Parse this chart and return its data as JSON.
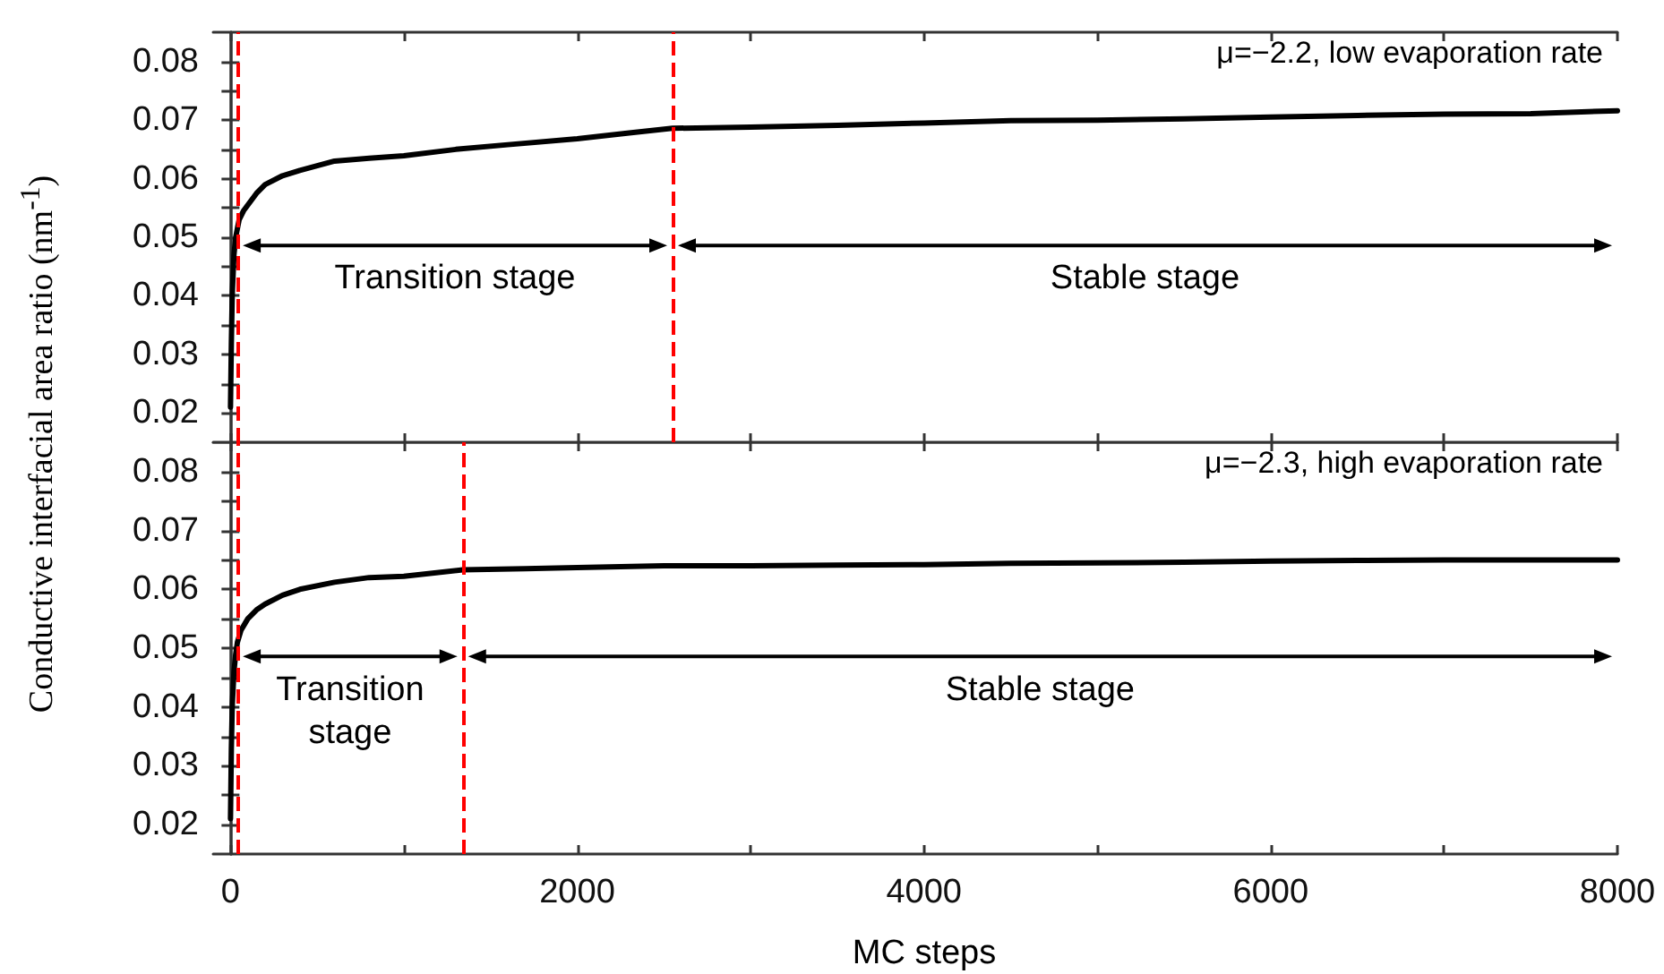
{
  "chart_data": [
    {
      "type": "line",
      "ylabel": "Conductive interfacial area ratio (nm$^{-1}$)",
      "annotations": [
        "μ=−2.2, low evaporation rate",
        "Transition stage",
        "Stable stage"
      ],
      "series": [
        {
          "color": "#000000",
          "x": [
            0,
            5,
            10,
            20,
            30,
            50,
            75,
            100,
            150,
            200,
            300,
            400,
            600,
            800,
            1000,
            1300,
            1600,
            2000,
            2300,
            2550,
            3000,
            3500,
            4000,
            4500,
            5000,
            5500,
            6000,
            6500,
            7000,
            7500,
            8000
          ],
          "values": [
            0.021,
            0.032,
            0.04,
            0.047,
            0.05,
            0.053,
            0.0545,
            0.0555,
            0.0575,
            0.059,
            0.0605,
            0.0614,
            0.063,
            0.0635,
            0.0639,
            0.065,
            0.0658,
            0.0668,
            0.0678,
            0.0686,
            0.0688,
            0.0691,
            0.0695,
            0.0699,
            0.07,
            0.0702,
            0.0705,
            0.0708,
            0.071,
            0.0711,
            0.0716
          ]
        }
      ],
      "xlim": [
        -100,
        8000
      ],
      "xticks": [
        {
          "value": 0,
          "label": null
        },
        {
          "value": 1000,
          "label": null
        },
        {
          "value": 2000,
          "label": null
        },
        {
          "value": 3000,
          "label": null
        },
        {
          "value": 4000,
          "label": null
        },
        {
          "value": 5000,
          "label": null
        },
        {
          "value": 6000,
          "label": null
        },
        {
          "value": 7000,
          "label": null
        },
        {
          "value": 8000,
          "label": null
        }
      ],
      "ylim": [
        0.015,
        0.085
      ],
      "yticks": [
        0.02,
        {
          "value": 0.025,
          "label": null
        },
        0.03,
        {
          "value": 0.035,
          "label": null
        },
        0.04,
        {
          "value": 0.045,
          "label": null
        },
        0.05,
        {
          "value": 0.055,
          "label": null
        },
        0.06,
        {
          "value": 0.065,
          "label": null
        },
        0.07,
        {
          "value": 0.075,
          "label": null
        },
        0.08
      ],
      "tick_labels": "y",
      "grid": false,
      "marker": "none",
      "line_style": "solid",
      "ref_lines": [
        {
          "axis": "x",
          "value": 40,
          "color": "#ff0000",
          "line_style": "dashed"
        },
        {
          "axis": "x",
          "value": 2550,
          "color": "#ff0000",
          "line_style": "dashed"
        }
      ]
    },
    {
      "type": "line",
      "xlabel": "MC steps",
      "annotations": [
        "μ=−2.3, high evaporation rate",
        "Transition stage",
        "Stable stage"
      ],
      "series": [
        {
          "color": "#000000",
          "x": [
            0,
            5,
            10,
            20,
            30,
            40,
            60,
            100,
            150,
            200,
            300,
            400,
            600,
            800,
            1000,
            1340,
            1700,
            2000,
            2500,
            3000,
            3500,
            4000,
            4500,
            5000,
            5500,
            6000,
            6500,
            7000,
            7500,
            8000
          ],
          "values": [
            0.021,
            0.033,
            0.04,
            0.046,
            0.049,
            0.051,
            0.053,
            0.055,
            0.0565,
            0.0575,
            0.059,
            0.06,
            0.0612,
            0.062,
            0.0622,
            0.0633,
            0.0635,
            0.0637,
            0.064,
            0.064,
            0.0641,
            0.0642,
            0.0644,
            0.0645,
            0.0646,
            0.0648,
            0.0649,
            0.065,
            0.065,
            0.065
          ]
        }
      ],
      "xlim": [
        -100,
        8000
      ],
      "xticks": [
        0,
        {
          "value": 1000,
          "label": null
        },
        2000,
        {
          "value": 3000,
          "label": null
        },
        4000,
        {
          "value": 5000,
          "label": null
        },
        6000,
        {
          "value": 7000,
          "label": null
        },
        8000
      ],
      "ylim": [
        0.015,
        0.085
      ],
      "yticks": [
        0.02,
        {
          "value": 0.025,
          "label": null
        },
        0.03,
        {
          "value": 0.035,
          "label": null
        },
        0.04,
        {
          "value": 0.045,
          "label": null
        },
        0.05,
        {
          "value": 0.055,
          "label": null
        },
        0.06,
        {
          "value": 0.065,
          "label": null
        },
        0.07,
        {
          "value": 0.075,
          "label": null
        },
        0.08
      ],
      "grid": false,
      "marker": "none",
      "line_style": "solid",
      "ref_lines": [
        {
          "axis": "x",
          "value": 40,
          "color": "#ff0000",
          "line_style": "dashed"
        },
        {
          "axis": "x",
          "value": 1340,
          "color": "#ff0000",
          "line_style": "dashed"
        }
      ]
    }
  ]
}
